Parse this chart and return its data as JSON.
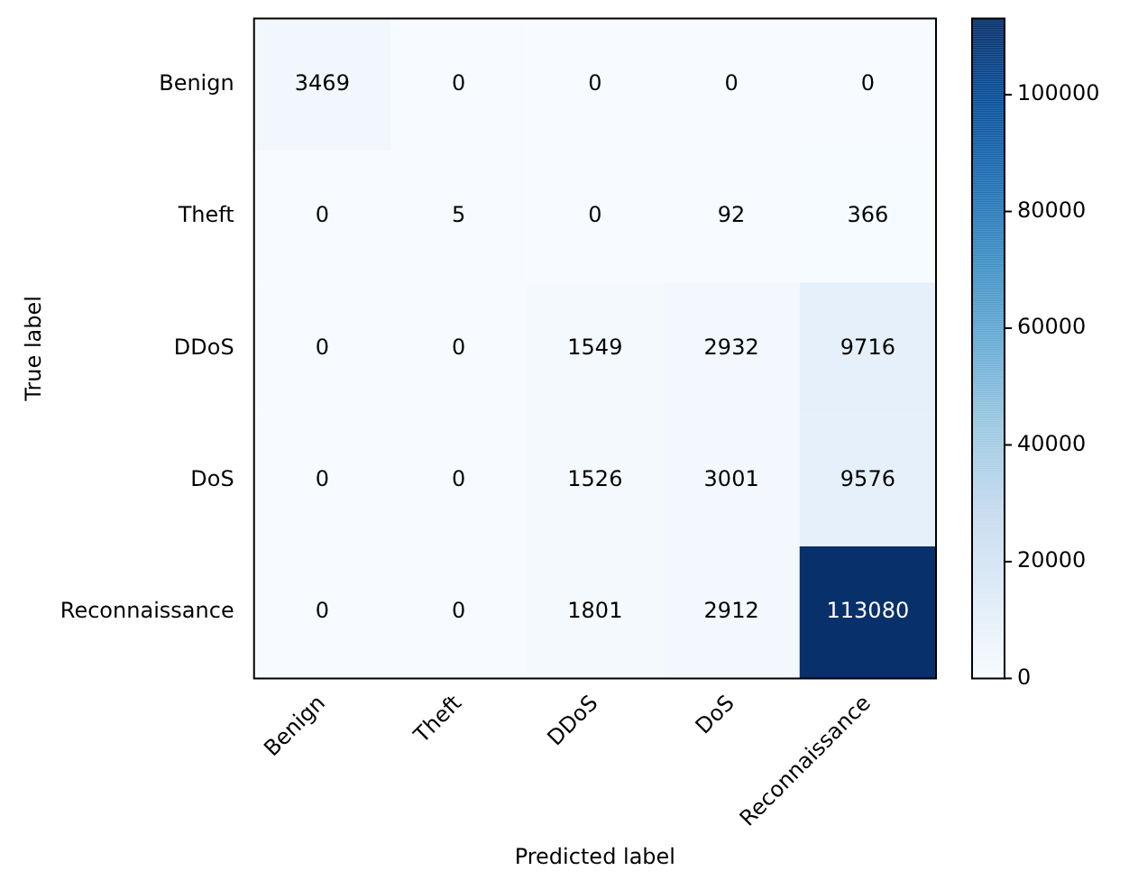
{
  "chart_data": {
    "type": "heatmap",
    "xlabel": "Predicted label",
    "ylabel": "True label",
    "categories": [
      "Benign",
      "Theft",
      "DDoS",
      "DoS",
      "Reconnaissance"
    ],
    "y_categories": [
      "Benign",
      "Theft",
      "DDoS",
      "DoS",
      "Reconnaissance"
    ],
    "cells": [
      [
        3469,
        0,
        0,
        0,
        0
      ],
      [
        0,
        5,
        0,
        92,
        366
      ],
      [
        0,
        0,
        1549,
        2932,
        9716
      ],
      [
        0,
        0,
        1526,
        3001,
        9576
      ],
      [
        0,
        0,
        1801,
        2912,
        113080
      ]
    ],
    "data_labels": true,
    "clim": [
      0,
      113080
    ],
    "cticks": [
      0,
      20000,
      40000,
      60000,
      80000,
      100000
    ]
  }
}
